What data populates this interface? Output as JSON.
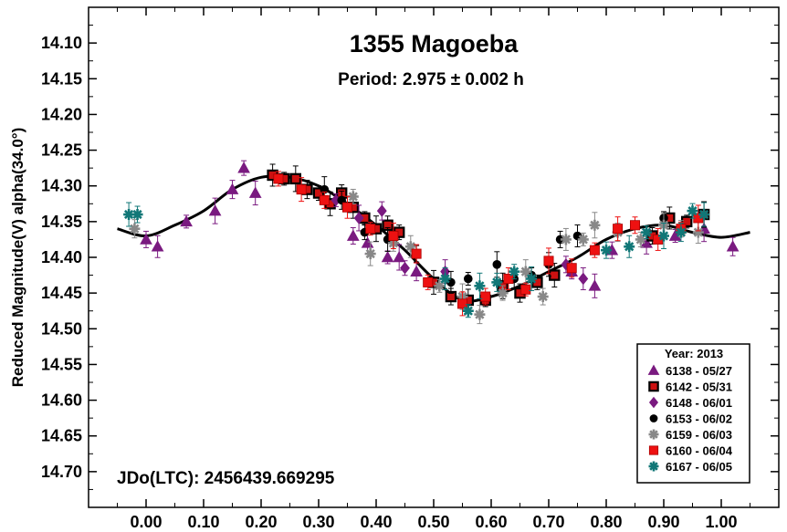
{
  "chart_data": {
    "type": "scatter",
    "title": "1355 Magoeba",
    "subtitle": "Period: 2.975 ± 0.002 h",
    "xlabel": "",
    "ylabel": "Reduced Magnitude(V) alpha(34.0°)",
    "annotation": "JDo(LTC): 2456439.669295",
    "xlim": [
      -0.1,
      1.1
    ],
    "ylim": [
      14.05,
      14.75
    ],
    "y_inverted": true,
    "x_ticks": [
      "0.00",
      "0.10",
      "0.20",
      "0.30",
      "0.40",
      "0.50",
      "0.60",
      "0.70",
      "0.80",
      "0.90",
      "1.00"
    ],
    "y_ticks": [
      "14.10",
      "14.15",
      "14.20",
      "14.25",
      "14.30",
      "14.35",
      "14.40",
      "14.45",
      "14.50",
      "14.55",
      "14.60",
      "14.65",
      "14.70"
    ],
    "grid": false,
    "legend_title": "Year: 2013",
    "legend_position": "bottom-right",
    "fit_curve": {
      "x": [
        -0.05,
        0.0,
        0.05,
        0.1,
        0.15,
        0.2,
        0.25,
        0.3,
        0.35,
        0.4,
        0.45,
        0.5,
        0.55,
        0.6,
        0.65,
        0.7,
        0.75,
        0.8,
        0.85,
        0.9,
        0.95,
        1.0,
        1.05
      ],
      "y": [
        14.36,
        14.37,
        14.355,
        14.335,
        14.305,
        14.288,
        14.288,
        14.3,
        14.325,
        14.355,
        14.39,
        14.43,
        14.46,
        14.455,
        14.44,
        14.42,
        14.4,
        14.375,
        14.36,
        14.355,
        14.365,
        14.372,
        14.365
      ]
    },
    "series": [
      {
        "name": "6138 - 05/27",
        "marker": "triangle",
        "color": "#7a1a80",
        "x": [
          0.0,
          0.02,
          0.07,
          0.12,
          0.15,
          0.17,
          0.19,
          0.36,
          0.385,
          0.42,
          0.44,
          0.47,
          0.74,
          0.78,
          0.81,
          0.87,
          0.92,
          0.97,
          1.02
        ],
        "y": [
          14.375,
          14.385,
          14.35,
          14.335,
          14.305,
          14.275,
          14.31,
          14.37,
          14.38,
          14.4,
          14.4,
          14.42,
          14.42,
          14.44,
          14.39,
          14.38,
          14.37,
          14.36,
          14.385
        ]
      },
      {
        "name": "6142 - 05/31",
        "marker": "square-outline",
        "color": "#cc1111",
        "x": [
          0.22,
          0.24,
          0.26,
          0.28,
          0.3,
          0.32,
          0.34,
          0.36,
          0.38,
          0.4,
          0.42,
          0.44,
          0.5,
          0.53,
          0.56,
          0.59,
          0.62,
          0.65,
          0.68,
          0.71,
          0.88,
          0.91,
          0.94,
          0.97
        ],
        "y": [
          14.285,
          14.29,
          14.29,
          14.305,
          14.31,
          14.325,
          14.31,
          14.33,
          14.345,
          14.36,
          14.355,
          14.365,
          14.435,
          14.455,
          14.46,
          14.46,
          14.44,
          14.45,
          14.435,
          14.425,
          14.37,
          14.345,
          14.35,
          14.34
        ]
      },
      {
        "name": "6148 - 06/01",
        "marker": "diamond",
        "color": "#7a1a80",
        "x": [
          0.33,
          0.37,
          0.41,
          0.45,
          0.52,
          0.73,
          0.76
        ],
        "y": [
          14.32,
          14.345,
          14.335,
          14.415,
          14.42,
          14.41,
          14.43
        ]
      },
      {
        "name": "6153 - 06/02",
        "marker": "circle",
        "color": "#000000",
        "x": [
          0.31,
          0.34,
          0.38,
          0.42,
          0.47,
          0.53,
          0.56,
          0.61,
          0.64,
          0.67,
          0.7,
          0.72,
          0.75,
          0.9
        ],
        "y": [
          14.305,
          14.32,
          14.365,
          14.375,
          14.395,
          14.435,
          14.43,
          14.41,
          14.43,
          14.425,
          14.41,
          14.375,
          14.37,
          14.345
        ]
      },
      {
        "name": "6159 - 06/03",
        "marker": "asterisk",
        "color": "#888888",
        "x": [
          -0.02,
          0.36,
          0.39,
          0.43,
          0.46,
          0.51,
          0.55,
          0.58,
          0.62,
          0.66,
          0.69,
          0.73,
          0.76,
          0.78,
          0.82,
          0.86,
          0.9,
          0.93,
          0.96
        ],
        "y": [
          14.36,
          14.315,
          14.395,
          14.38,
          14.385,
          14.44,
          14.455,
          14.48,
          14.45,
          14.42,
          14.455,
          14.375,
          14.375,
          14.355,
          14.365,
          14.375,
          14.355,
          14.36,
          14.365
        ]
      },
      {
        "name": "6160 - 06/04",
        "marker": "square",
        "color": "#ee1111",
        "x": [
          0.23,
          0.27,
          0.31,
          0.35,
          0.39,
          0.43,
          0.47,
          0.49,
          0.55,
          0.59,
          0.63,
          0.66,
          0.7,
          0.74,
          0.78,
          0.82,
          0.85,
          0.89,
          0.93,
          0.96
        ],
        "y": [
          14.29,
          14.305,
          14.32,
          14.33,
          14.36,
          14.37,
          14.395,
          14.435,
          14.465,
          14.455,
          14.43,
          14.445,
          14.405,
          14.415,
          14.39,
          14.36,
          14.355,
          14.375,
          14.36,
          14.345
        ]
      },
      {
        "name": "6167 - 06/05",
        "marker": "asterisk",
        "color": "#117777",
        "x": [
          -0.03,
          -0.015,
          0.52,
          0.56,
          0.58,
          0.61,
          0.64,
          0.67,
          0.8,
          0.84,
          0.87,
          0.9,
          0.93,
          0.95,
          0.97
        ],
        "y": [
          14.34,
          14.34,
          14.43,
          14.475,
          14.44,
          14.435,
          14.42,
          14.43,
          14.39,
          14.385,
          14.365,
          14.37,
          14.365,
          14.335,
          14.34
        ]
      }
    ]
  }
}
